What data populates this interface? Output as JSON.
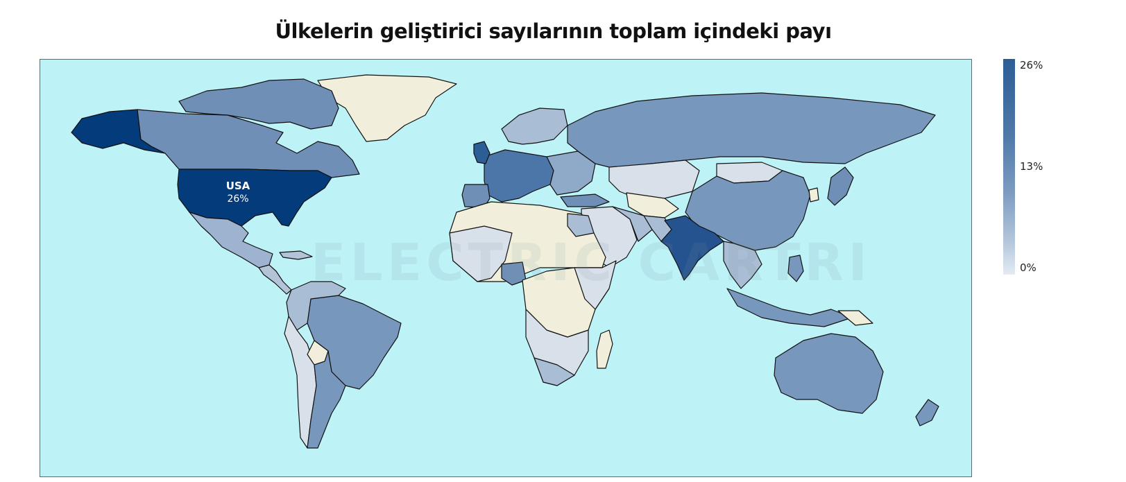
{
  "title": "Ülkelerin geliştirici sayılarının toplam içindeki payı",
  "watermark": "ELECTRIC CARTRI",
  "legend": {
    "max_label": "26%",
    "mid_label": "13%",
    "min_label": "0%",
    "color_high": "#2c5d95",
    "color_low": "#e3ebf3"
  },
  "highlight": {
    "country": "USA",
    "value_label": "26%"
  },
  "colors": {
    "ocean": "#bdf2f7",
    "no_data": "#f1efdb",
    "usa": "#043b7a",
    "india": "#24538f",
    "high": "#4d76a8",
    "medium": "#7897bc",
    "low": "#a9bdd4",
    "lowest": "#d8e0ea"
  }
}
